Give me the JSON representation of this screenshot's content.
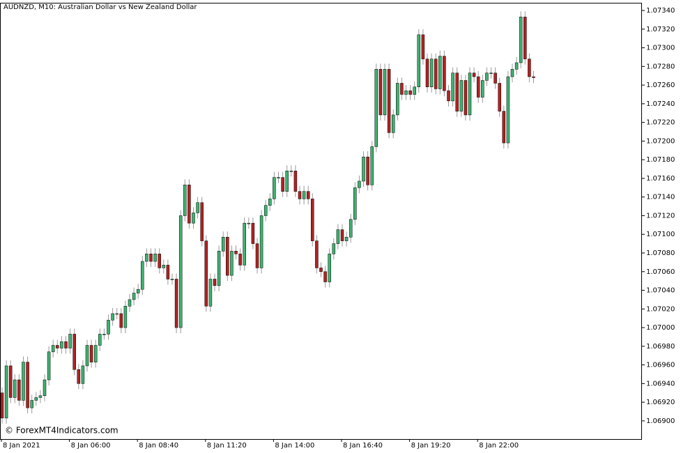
{
  "chart_data": {
    "type": "candlestick",
    "title": "AUDNZD, M10:  Australian Dollar vs New Zealand Dollar",
    "watermark": "© ForexMT4Indicators.com",
    "up_color": "#3cb371",
    "down_color": "#b22222",
    "wick_color": "#999999",
    "categories": [
      "8 Jan 2021",
      null,
      null,
      null,
      null,
      null,
      null,
      null,
      null,
      null,
      null,
      null,
      null,
      null,
      null,
      null,
      "8 Jan 06:00",
      null,
      null,
      null,
      null,
      null,
      null,
      null,
      null,
      null,
      null,
      null,
      null,
      null,
      null,
      null,
      "8 Jan 08:40",
      null,
      null,
      null,
      null,
      null,
      null,
      null,
      null,
      null,
      null,
      null,
      null,
      null,
      null,
      null,
      "8 Jan 11:20",
      null,
      null,
      null,
      null,
      null,
      null,
      null,
      null,
      null,
      null,
      null,
      null,
      null,
      null,
      null,
      "8 Jan 14:00",
      null,
      null,
      null,
      null,
      null,
      null,
      null,
      null,
      null,
      null,
      null,
      null,
      null,
      null,
      null,
      "8 Jan 16:40",
      null,
      null,
      null,
      null,
      null,
      null,
      null,
      null,
      null,
      null,
      null,
      null,
      null,
      null,
      null,
      "8 Jan 19:20",
      null,
      null,
      null,
      null,
      null,
      null,
      null,
      null,
      null,
      null,
      null,
      null,
      null,
      null,
      null,
      "8 Jan 22:00",
      null,
      null,
      null,
      null,
      null,
      null,
      null,
      null,
      null,
      null,
      null,
      null,
      null
    ],
    "open": [
      1.0693,
      1.06903,
      1.06959,
      1.06925,
      1.06944,
      1.06922,
      1.06963,
      1.06914,
      1.06922,
      1.06925,
      1.06927,
      1.06944,
      1.06974,
      1.06981,
      1.06978,
      1.06985,
      1.06978,
      1.06993,
      1.06955,
      1.0694,
      1.06959,
      1.06981,
      1.06963,
      1.06981,
      1.06993,
      1.06993,
      1.07008,
      1.07015,
      1.07015,
      1.07,
      1.07023,
      1.0703,
      1.07037,
      1.07041,
      1.07071,
      1.07079,
      1.07071,
      1.07079,
      1.07064,
      1.07067,
      1.07052,
      1.07052,
      1.07,
      1.0712,
      1.07153,
      1.07112,
      1.07123,
      1.07134,
      1.07093,
      1.07023,
      1.07052,
      1.07045,
      1.07082,
      1.07097,
      1.07056,
      1.07082,
      1.07079,
      1.07067,
      1.07112,
      1.07112,
      1.0709,
      1.07064,
      1.0712,
      1.07131,
      1.07138,
      1.07161,
      1.07161,
      1.07146,
      1.07168,
      1.07168,
      1.07146,
      1.07138,
      1.07146,
      1.07138,
      1.07093,
      1.07064,
      1.0706,
      1.07049,
      1.07079,
      1.0709,
      1.07105,
      1.07093,
      1.07097,
      1.07116,
      1.0715,
      1.07157,
      1.07183,
      1.07153,
      1.07194,
      1.07277,
      1.07228,
      1.07277,
      1.07209,
      1.07228,
      1.07262,
      1.0725,
      1.07254,
      1.0725,
      1.07258,
      1.07314,
      1.07288,
      1.07258,
      1.07288,
      1.07256,
      1.07291,
      1.07254,
      1.07243,
      1.07273,
      1.07232,
      1.07265,
      1.07228,
      1.07273,
      1.07269,
      1.07247,
      1.07265,
      1.07273,
      1.07273,
      1.07262,
      1.07232,
      1.07198,
      1.07269,
      1.07277,
      1.07284,
      1.07333,
      1.07288,
      1.07269
    ],
    "high": [
      1.06936,
      1.06965,
      1.06965,
      1.0695,
      1.0695,
      1.06969,
      1.06969,
      1.06928,
      1.06931,
      1.06933,
      1.0695,
      1.0698,
      1.06987,
      1.06987,
      1.06991,
      1.06991,
      1.06999,
      1.06999,
      1.06961,
      1.06965,
      1.06987,
      1.06987,
      1.06987,
      1.06999,
      1.06999,
      1.07014,
      1.07021,
      1.07021,
      1.07021,
      1.07029,
      1.07036,
      1.07043,
      1.07047,
      1.07077,
      1.07085,
      1.07085,
      1.07085,
      1.07085,
      1.07073,
      1.07073,
      1.07058,
      1.07058,
      1.07126,
      1.07159,
      1.07159,
      1.07129,
      1.0714,
      1.0714,
      1.07099,
      1.07058,
      1.07058,
      1.07088,
      1.07103,
      1.07103,
      1.07088,
      1.07088,
      1.07085,
      1.07118,
      1.07118,
      1.07118,
      1.07096,
      1.07126,
      1.07137,
      1.07144,
      1.07167,
      1.07167,
      1.07167,
      1.07174,
      1.07174,
      1.07174,
      1.07152,
      1.07152,
      1.07152,
      1.07144,
      1.07099,
      1.0707,
      1.07066,
      1.07085,
      1.07096,
      1.07111,
      1.07111,
      1.07103,
      1.07122,
      1.07156,
      1.07163,
      1.07189,
      1.07189,
      1.072,
      1.07283,
      1.07283,
      1.07283,
      1.07283,
      1.07234,
      1.07268,
      1.07268,
      1.0726,
      1.0726,
      1.07264,
      1.0732,
      1.0732,
      1.07294,
      1.07294,
      1.07294,
      1.07297,
      1.07297,
      1.0726,
      1.07279,
      1.07279,
      1.07271,
      1.07271,
      1.07279,
      1.07279,
      1.07275,
      1.07271,
      1.07279,
      1.07279,
      1.07279,
      1.07268,
      1.07238,
      1.07275,
      1.07283,
      1.0729,
      1.07339,
      1.07339,
      1.07294,
      1.07275
    ],
    "low": [
      1.06897,
      1.06897,
      1.06919,
      1.06919,
      1.06916,
      1.06916,
      1.06908,
      1.06908,
      1.06916,
      1.06919,
      1.06921,
      1.06938,
      1.06968,
      1.06972,
      1.06972,
      1.06972,
      1.06972,
      1.06949,
      1.06934,
      1.06934,
      1.06953,
      1.06957,
      1.06957,
      1.06975,
      1.06987,
      1.06987,
      1.07002,
      1.07009,
      1.06994,
      1.06994,
      1.07017,
      1.07024,
      1.07031,
      1.07035,
      1.07065,
      1.07065,
      1.07065,
      1.07058,
      1.07058,
      1.07046,
      1.07046,
      1.06994,
      1.06994,
      1.07114,
      1.07106,
      1.07106,
      1.07117,
      1.07087,
      1.07017,
      1.07017,
      1.07039,
      1.07039,
      1.07076,
      1.0705,
      1.0705,
      1.07073,
      1.07061,
      1.07061,
      1.07106,
      1.07084,
      1.07058,
      1.07058,
      1.07114,
      1.07125,
      1.07132,
      1.07155,
      1.0714,
      1.0714,
      1.07162,
      1.0714,
      1.07132,
      1.07132,
      1.07132,
      1.07087,
      1.07058,
      1.07054,
      1.07043,
      1.07043,
      1.07073,
      1.07084,
      1.07087,
      1.07087,
      1.07091,
      1.0711,
      1.07144,
      1.07151,
      1.07147,
      1.07147,
      1.07188,
      1.07222,
      1.07222,
      1.07203,
      1.07203,
      1.07222,
      1.07244,
      1.07244,
      1.07244,
      1.07244,
      1.07252,
      1.07282,
      1.07252,
      1.07252,
      1.0725,
      1.0725,
      1.07248,
      1.07237,
      1.07237,
      1.07226,
      1.07226,
      1.07222,
      1.07222,
      1.07263,
      1.07241,
      1.07241,
      1.07259,
      1.07267,
      1.07256,
      1.07226,
      1.07192,
      1.07192,
      1.07263,
      1.07271,
      1.07278,
      1.07282,
      1.07263,
      1.07262
    ],
    "close": [
      1.06903,
      1.06959,
      1.06925,
      1.06944,
      1.06922,
      1.06963,
      1.06914,
      1.06922,
      1.06925,
      1.06927,
      1.06944,
      1.06974,
      1.06981,
      1.06978,
      1.06985,
      1.06978,
      1.06993,
      1.06955,
      1.0694,
      1.06959,
      1.06981,
      1.06963,
      1.06981,
      1.06993,
      1.06993,
      1.07008,
      1.07015,
      1.07015,
      1.07,
      1.07023,
      1.0703,
      1.07037,
      1.07041,
      1.07071,
      1.07079,
      1.07071,
      1.07079,
      1.07064,
      1.07067,
      1.07052,
      1.07052,
      1.07,
      1.0712,
      1.07153,
      1.07112,
      1.07123,
      1.07134,
      1.07093,
      1.07023,
      1.07052,
      1.07045,
      1.07082,
      1.07097,
      1.07056,
      1.07082,
      1.07079,
      1.07067,
      1.07112,
      1.07112,
      1.0709,
      1.07064,
      1.0712,
      1.07131,
      1.07138,
      1.07161,
      1.07161,
      1.07146,
      1.07168,
      1.07168,
      1.07146,
      1.07138,
      1.07146,
      1.07138,
      1.07093,
      1.07064,
      1.0706,
      1.07049,
      1.07079,
      1.0709,
      1.07105,
      1.07093,
      1.07097,
      1.07116,
      1.0715,
      1.07157,
      1.07183,
      1.07153,
      1.07194,
      1.07277,
      1.07228,
      1.07277,
      1.07209,
      1.07228,
      1.07262,
      1.0725,
      1.07254,
      1.0725,
      1.07258,
      1.07314,
      1.07288,
      1.07258,
      1.07288,
      1.07256,
      1.07291,
      1.07254,
      1.07243,
      1.07273,
      1.07232,
      1.07265,
      1.07228,
      1.07273,
      1.07269,
      1.07247,
      1.07265,
      1.07273,
      1.07273,
      1.07262,
      1.07232,
      1.07198,
      1.07269,
      1.07277,
      1.07284,
      1.07333,
      1.07288,
      1.07269,
      1.07268
    ],
    "ylim": [
      1.068805,
      1.073475
    ],
    "yticks": [
      {
        "value": 1.069,
        "label": "1.06900"
      },
      {
        "value": 1.0692,
        "label": "1.06920"
      },
      {
        "value": 1.0694,
        "label": "1.06940"
      },
      {
        "value": 1.0696,
        "label": "1.06960"
      },
      {
        "value": 1.0698,
        "label": "1.06980"
      },
      {
        "value": 1.07,
        "label": "1.07000"
      },
      {
        "value": 1.0702,
        "label": "1.07020"
      },
      {
        "value": 1.0704,
        "label": "1.07040"
      },
      {
        "value": 1.0706,
        "label": "1.07060"
      },
      {
        "value": 1.0708,
        "label": "1.07080"
      },
      {
        "value": 1.071,
        "label": "1.07100"
      },
      {
        "value": 1.0712,
        "label": "1.07120"
      },
      {
        "value": 1.0714,
        "label": "1.07140"
      },
      {
        "value": 1.0716,
        "label": "1.07160"
      },
      {
        "value": 1.0718,
        "label": "1.07180"
      },
      {
        "value": 1.072,
        "label": "1.07200"
      },
      {
        "value": 1.0722,
        "label": "1.07220"
      },
      {
        "value": 1.0724,
        "label": "1.07240"
      },
      {
        "value": 1.0726,
        "label": "1.07260"
      },
      {
        "value": 1.0728,
        "label": "1.07280"
      },
      {
        "value": 1.073,
        "label": "1.07300"
      },
      {
        "value": 1.0732,
        "label": "1.07320"
      },
      {
        "value": 1.0734,
        "label": "1.07340"
      }
    ],
    "grid": false
  }
}
